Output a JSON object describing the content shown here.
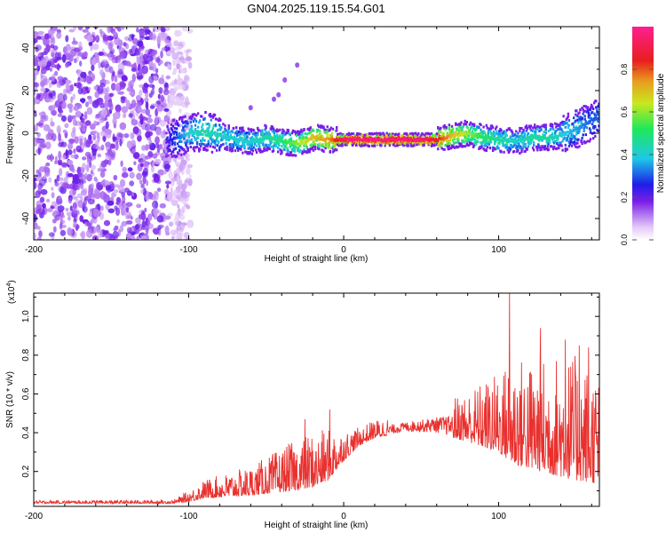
{
  "title": "GN04.2025.119.15.54.G01",
  "chart_data": [
    {
      "type": "heatmap",
      "name": "spectrogram",
      "xlabel": "Height of straight line (km)",
      "ylabel": "Frequency (Hz)",
      "xlim": [
        -200,
        165
      ],
      "ylim": [
        -50,
        50
      ],
      "xticks": [
        -200,
        -100,
        0,
        100
      ],
      "yticks": [
        -40,
        -20,
        0,
        20,
        40
      ],
      "colorbar": {
        "label": "Normalized spectral amplitude",
        "range": [
          0,
          1
        ],
        "ticks": [
          "0.0",
          "0.2",
          "0.4",
          "0.6",
          "0.8"
        ],
        "tick_values": [
          0.0,
          0.2,
          0.4,
          0.6,
          0.8
        ]
      },
      "noise_region_x": [
        -200,
        -105
      ],
      "ridge": {
        "x": [
          -115,
          -100,
          -90,
          -80,
          -70,
          -60,
          -50,
          -40,
          -30,
          -20,
          -10,
          0,
          10,
          20,
          30,
          40,
          50,
          60,
          70,
          80,
          90,
          100,
          110,
          120,
          130,
          140,
          150,
          160,
          165
        ],
        "y": [
          -4,
          0,
          1,
          -1,
          -3,
          -4,
          -2,
          -4,
          -5,
          -2,
          -3,
          -3,
          -3,
          -3,
          -3,
          -3,
          -3,
          -3,
          -1,
          0,
          -2,
          -3,
          -4,
          -2,
          -2,
          -1,
          2,
          6,
          8
        ],
        "amplitude": [
          0.2,
          0.4,
          0.45,
          0.4,
          0.4,
          0.4,
          0.45,
          0.5,
          0.6,
          0.7,
          0.75,
          0.95,
          0.97,
          0.97,
          0.97,
          0.95,
          0.95,
          0.85,
          0.7,
          0.6,
          0.5,
          0.45,
          0.4,
          0.45,
          0.45,
          0.4,
          0.35,
          0.3,
          0.3
        ]
      }
    },
    {
      "type": "line",
      "name": "snr",
      "xlabel": "Height of straight line (km)",
      "ylabel": "SNR (10 * v/v)",
      "multiplier": "(x10",
      "multiplier_exp": "4",
      "multiplier_close": ")",
      "xlim": [
        -200,
        165
      ],
      "ylim": [
        0.02,
        1.12
      ],
      "xticks": [
        -200,
        -100,
        0,
        100
      ],
      "yticks": [
        0.2,
        0.4,
        0.6,
        0.8,
        1.0
      ],
      "ytick_labels": [
        "0.2",
        "0.4",
        "0.6",
        "0.8",
        "1.0"
      ],
      "color": "#e8312e",
      "envelope": {
        "x": [
          -200,
          -110,
          -100,
          -90,
          -80,
          -70,
          -60,
          -50,
          -40,
          -30,
          -20,
          -10,
          0,
          10,
          20,
          40,
          60,
          80,
          100,
          110,
          120,
          140,
          150,
          160,
          165
        ],
        "base": [
          0.04,
          0.04,
          0.06,
          0.09,
          0.1,
          0.11,
          0.12,
          0.14,
          0.16,
          0.18,
          0.2,
          0.23,
          0.3,
          0.36,
          0.4,
          0.43,
          0.44,
          0.43,
          0.42,
          0.4,
          0.38,
          0.36,
          0.34,
          0.32,
          0.3
        ],
        "amp": [
          0.008,
          0.01,
          0.03,
          0.05,
          0.06,
          0.07,
          0.08,
          0.1,
          0.12,
          0.14,
          0.15,
          0.14,
          0.08,
          0.05,
          0.05,
          0.05,
          0.08,
          0.14,
          0.22,
          0.3,
          0.3,
          0.34,
          0.34,
          0.32,
          0.3
        ]
      },
      "peaks": [
        {
          "x": -25,
          "y": 0.47
        },
        {
          "x": -18,
          "y": 0.3
        },
        {
          "x": -9,
          "y": 0.52
        },
        {
          "x": 107,
          "y": 1.12
        },
        {
          "x": 127,
          "y": 0.94
        },
        {
          "x": 143,
          "y": 0.88
        },
        {
          "x": 152,
          "y": 0.85
        },
        {
          "x": 158,
          "y": 0.84
        }
      ]
    }
  ]
}
